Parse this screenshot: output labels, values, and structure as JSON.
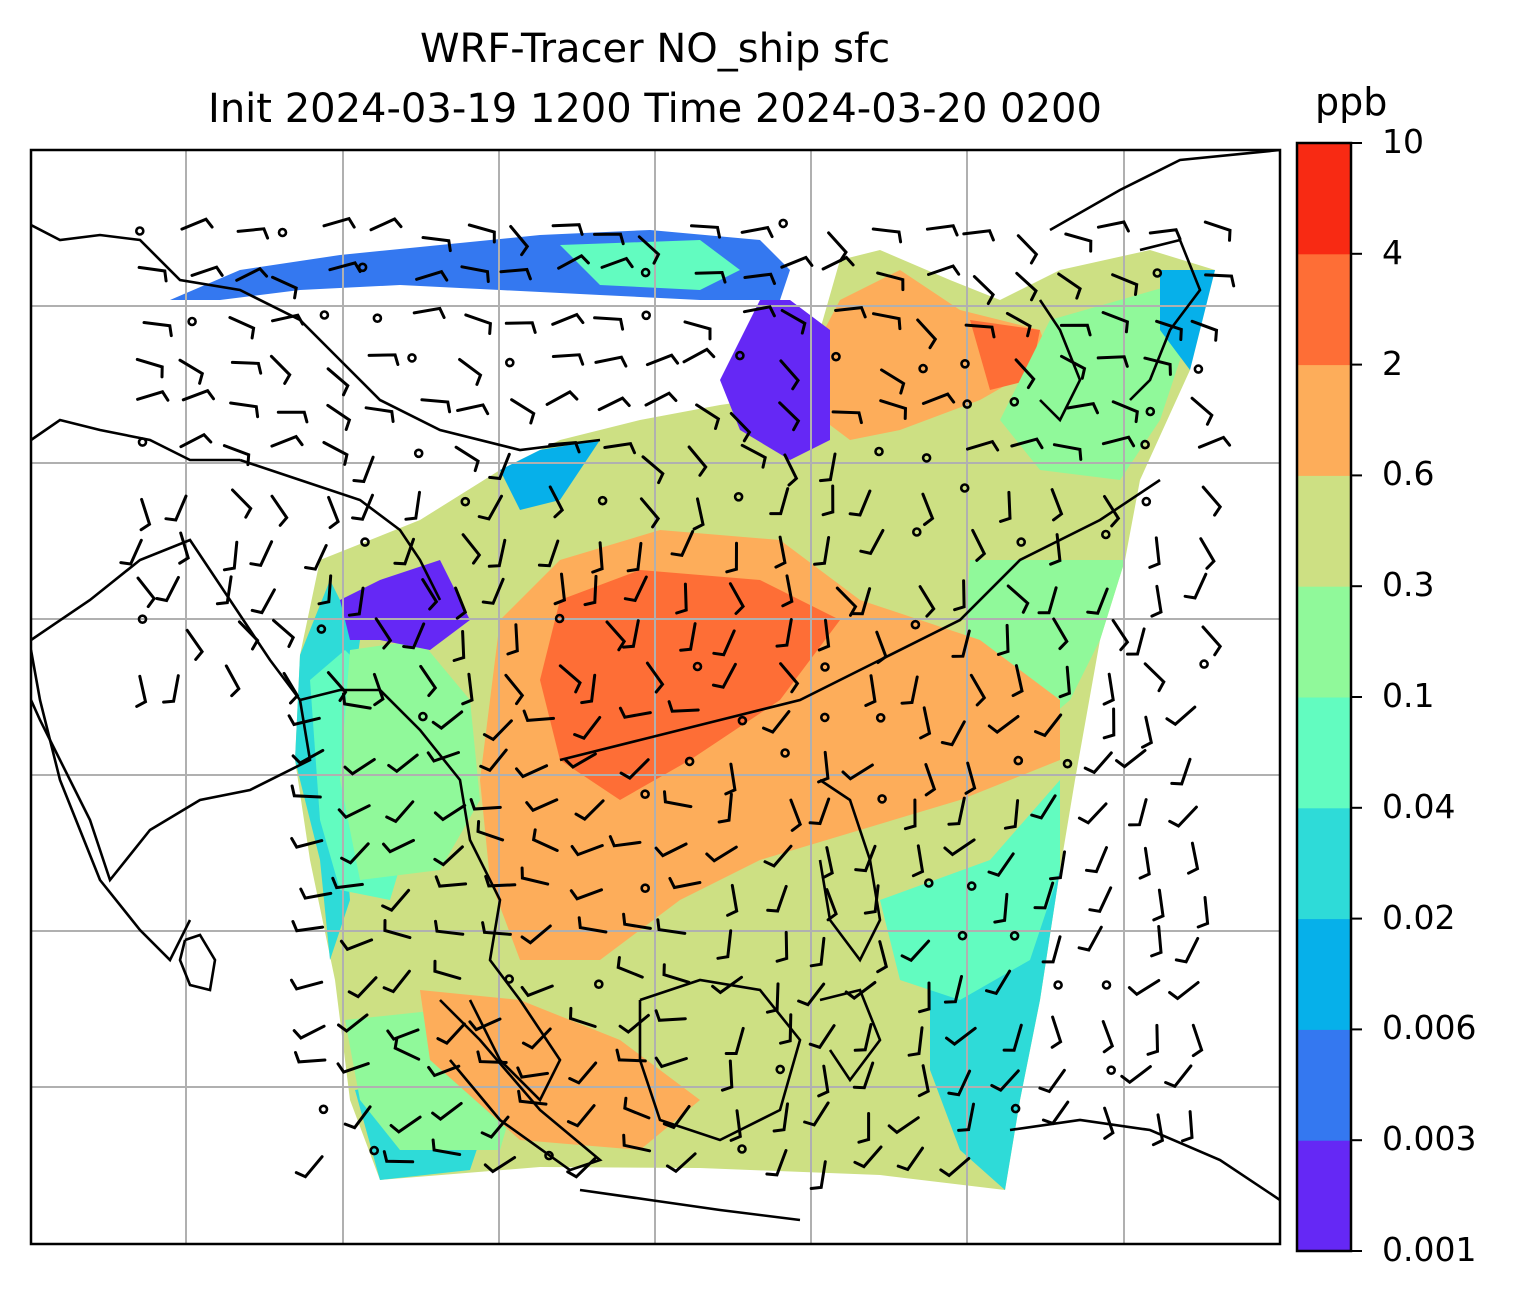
{
  "chart_data": {
    "type": "heatmap",
    "title": "WRF-Tracer NO_ship sfc",
    "subtitle": "Init 2024-03-19 1200 Time 2024-03-20 0200",
    "xlabel": "",
    "ylabel": "",
    "colorbar": {
      "unit": "ppb",
      "levels": [
        "0.001",
        "0.003",
        "0.006",
        "0.02",
        "0.04",
        "0.1",
        "0.3",
        "0.6",
        "2",
        "4",
        "10"
      ],
      "colors": [
        "#6528f5",
        "#3478f0",
        "#06b0ea",
        "#2edbd8",
        "#62fcc0",
        "#90f99a",
        "#cde083",
        "#fdad5a",
        "#fe6e36",
        "#f82a13"
      ]
    },
    "grid": true,
    "overlays": [
      "coastlines",
      "wind-barbs",
      "calm-circles"
    ]
  }
}
